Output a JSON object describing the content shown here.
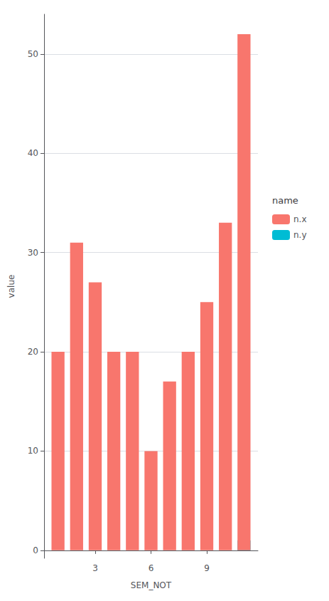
{
  "chart_data": {
    "type": "bar",
    "stacked": true,
    "xlabel": "SEM_NOT",
    "ylabel": "value",
    "x": [
      1,
      2,
      3,
      4,
      5,
      6,
      7,
      8,
      9,
      10,
      11
    ],
    "series": [
      {
        "name": "n.x",
        "color": "#F8766D",
        "values": [
          20,
          31,
          27,
          20,
          20,
          10,
          17,
          20,
          25,
          33,
          52
        ]
      },
      {
        "name": "n.y",
        "color": "#00BCD4",
        "values": [
          0,
          0,
          0,
          0,
          0,
          0,
          0,
          0,
          0,
          0,
          1
        ]
      }
    ],
    "xlim": [
      0.25,
      11.75
    ],
    "xticks": [
      3,
      6,
      9
    ],
    "ylim": [
      -0.8,
      54
    ],
    "yticks": [
      0,
      10,
      20,
      30,
      40,
      50
    ],
    "grid": true,
    "legend": "right",
    "legend_title": "name"
  }
}
